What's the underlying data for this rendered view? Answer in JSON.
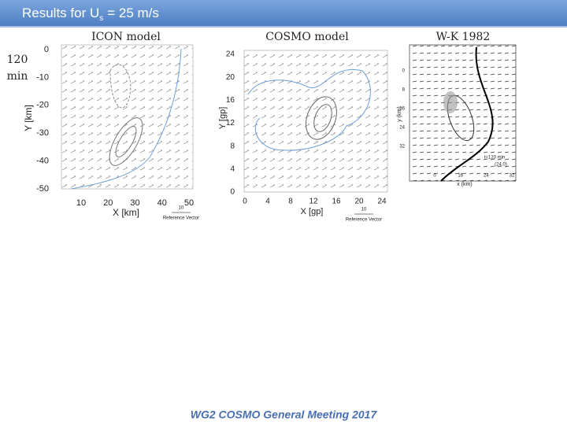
{
  "header": {
    "title_main": "Results for U",
    "title_sub": "s",
    "title_rest": "= 25 m/s"
  },
  "side_label": {
    "line1": "120",
    "line2": "min"
  },
  "panels": [
    {
      "label": "ICON model",
      "yticks": [
        "0",
        "-10",
        "-20",
        "-30",
        "-40",
        "-50"
      ],
      "xticks": [
        "10",
        "20",
        "30",
        "40",
        "50"
      ],
      "xlabel": "X [km]",
      "ylabel": "Y [km]",
      "ref_value": "10",
      "ref_label": "Reference Vector"
    },
    {
      "label": "COSMO model",
      "yticks": [
        "24",
        "20",
        "16",
        "12",
        "8",
        "4",
        "0"
      ],
      "xticks": [
        "0",
        "4",
        "8",
        "12",
        "16",
        "20",
        "24"
      ],
      "xlabel": "X [gp]",
      "ylabel": "Y [gp]",
      "ref_value": "10",
      "ref_label": "Reference Vector"
    },
    {
      "label": "W-K 1982",
      "yticks": [
        "0",
        "8",
        "16",
        "24",
        "32"
      ],
      "xticks": [
        "0",
        "16",
        "24",
        "32"
      ],
      "xlabel": "x (km)",
      "ylabel": "y (km)",
      "annotation": "t=120 min",
      "annotation2": "(24.0)"
    }
  ],
  "footer": "WG2 COSMO General Meeting 2017"
}
